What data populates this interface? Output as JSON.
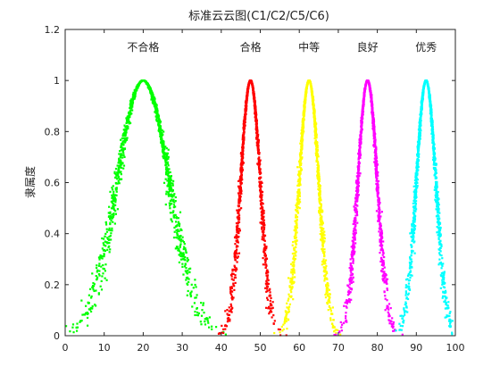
{
  "chart_data": {
    "type": "scatter",
    "title": "标准云云图(C1/C2/C5/C6)",
    "xlabel": "",
    "ylabel": "隶属度",
    "xlim": [
      0,
      100
    ],
    "ylim": [
      0,
      1.2
    ],
    "xticks": [
      "0",
      "10",
      "20",
      "30",
      "40",
      "50",
      "60",
      "70",
      "80",
      "90",
      "100"
    ],
    "yticks": [
      "0",
      "0.2",
      "0.4",
      "0.6",
      "0.8",
      "1",
      "1.2"
    ],
    "grid": false,
    "legend": "none",
    "series": [
      {
        "name": "不合格",
        "color": "#00ff00",
        "center": 20,
        "x_range": [
          0,
          40
        ],
        "peak": 1
      },
      {
        "name": "合格",
        "color": "#ff0000",
        "center": 47.5,
        "x_range": [
          40,
          55
        ],
        "peak": 1
      },
      {
        "name": "中等",
        "color": "#ffff00",
        "center": 62.5,
        "x_range": [
          55,
          70
        ],
        "peak": 1
      },
      {
        "name": "良好",
        "color": "#ff00ff",
        "center": 77.5,
        "x_range": [
          70,
          85
        ],
        "peak": 1
      },
      {
        "name": "优秀",
        "color": "#00ffff",
        "center": 92.5,
        "x_range": [
          85,
          100
        ],
        "peak": 1
      }
    ]
  }
}
